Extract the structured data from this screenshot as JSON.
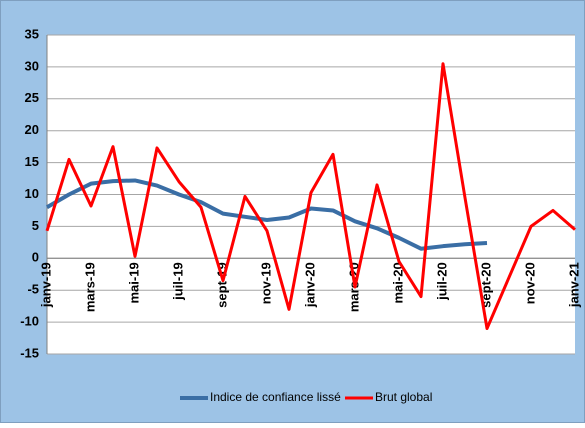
{
  "chart_data": {
    "type": "line",
    "categories": [
      "janv-19",
      null,
      "mars-19",
      null,
      "mai-19",
      null,
      "juil-19",
      null,
      "sept-19",
      null,
      "nov-19",
      null,
      "janv-20",
      null,
      "mars-20",
      null,
      "mai-20",
      null,
      "juil-20",
      null,
      "sept-20",
      null,
      "nov-20",
      null,
      "janv-21"
    ],
    "series": [
      {
        "name": "Indice de confiance lissé",
        "color": "#3a6ea5",
        "values": [
          8,
          10,
          11.7,
          12.1,
          12.2,
          11.4,
          10,
          8.8,
          7,
          6.5,
          6,
          6.4,
          7.8,
          7.5,
          5.8,
          4.7,
          3.2,
          1.5,
          1.9,
          2.2,
          2.4,
          null,
          null,
          null,
          null
        ]
      },
      {
        "name": "Brut global",
        "color": "#ff0000",
        "values": [
          4.3,
          15.5,
          8.2,
          17.5,
          0.3,
          17.3,
          12,
          8,
          -3.5,
          9.7,
          4.3,
          -8,
          10.3,
          16.3,
          -4.5,
          11.5,
          -0.5,
          -6,
          30.5,
          9.5,
          -11,
          -3,
          5,
          7.5,
          4.5
        ]
      }
    ],
    "ylim": [
      -15,
      35
    ],
    "yticks": [
      -15,
      -10,
      -5,
      0,
      5,
      10,
      15,
      20,
      25,
      30,
      35
    ],
    "grid": true,
    "legend": "bottom"
  }
}
